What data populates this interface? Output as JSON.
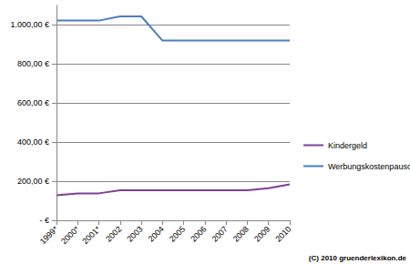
{
  "chart_data": {
    "type": "line",
    "categories": [
      "1999*",
      "2000*",
      "2001*",
      "2002",
      "2003",
      "2004",
      "2005",
      "2006",
      "2007",
      "2008",
      "2009",
      "2010"
    ],
    "series": [
      {
        "name": "Kindergeld",
        "color": "#7d3f98",
        "values": [
          127.82,
          138.05,
          138.05,
          154,
          154,
          154,
          154,
          154,
          154,
          154,
          164,
          184
        ]
      },
      {
        "name": "Werbungskostenpauschale",
        "color": "#4a7ebb",
        "values": [
          1022.58,
          1022.58,
          1022.58,
          1044,
          1044,
          920,
          920,
          920,
          920,
          920,
          920,
          920
        ]
      }
    ],
    "ylim": [
      0,
      1100
    ],
    "yticks": [
      {
        "value": 0,
        "label": "- €"
      },
      {
        "value": 200,
        "label": "200,00 €"
      },
      {
        "value": 400,
        "label": "400,00 €"
      },
      {
        "value": 600,
        "label": "600,00 €"
      },
      {
        "value": 800,
        "label": "800,00 €"
      },
      {
        "value": 1000,
        "label": "1.000,00 €"
      }
    ],
    "grid": true,
    "legend": "right",
    "annotations": [
      "(C) 2010 gruenderlexikon.de"
    ]
  }
}
